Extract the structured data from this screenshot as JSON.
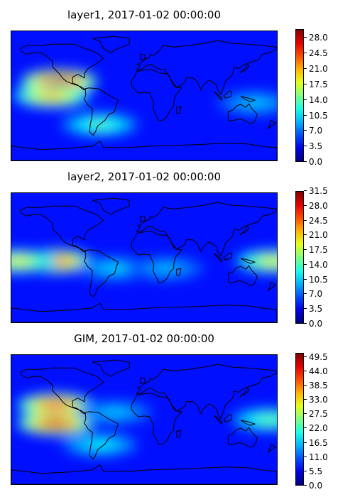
{
  "panels": [
    {
      "title": "layer1, 2017-01-02 00:00:00",
      "colorbar_ticks": [
        "0.0",
        "3.5",
        "7.0",
        "10.5",
        "14.0",
        "17.5",
        "21.0",
        "24.5",
        "28.0"
      ],
      "vmax": 30.0,
      "hotspots": [
        {
          "lon": -115,
          "lat": 20,
          "value": 29
        },
        {
          "lon": -125,
          "lat": 0,
          "value": 22
        },
        {
          "lon": -60,
          "lat": -40,
          "value": 14
        },
        {
          "lon": 150,
          "lat": -10,
          "value": 10
        }
      ]
    },
    {
      "title": "layer2, 2017-01-02 00:00:00",
      "colorbar_ticks": [
        "0.0",
        "3.5",
        "7.0",
        "10.5",
        "14.0",
        "17.5",
        "21.0",
        "24.5",
        "28.0",
        "31.5"
      ],
      "vmax": 31.5,
      "hotspots": [
        {
          "lon": -120,
          "lat": -5,
          "value": 27
        },
        {
          "lon": -170,
          "lat": -5,
          "value": 20
        },
        {
          "lon": 175,
          "lat": -5,
          "value": 20
        },
        {
          "lon": -40,
          "lat": -15,
          "value": 11
        },
        {
          "lon": 30,
          "lat": -15,
          "value": 10
        }
      ]
    },
    {
      "title": "GIM, 2017-01-02 00:00:00",
      "colorbar_ticks": [
        "0.0",
        "5.5",
        "11.0",
        "16.5",
        "22.0",
        "27.5",
        "33.0",
        "38.5",
        "44.0",
        "49.5"
      ],
      "vmax": 51.0,
      "hotspots": [
        {
          "lon": -120,
          "lat": 20,
          "value": 45
        },
        {
          "lon": -120,
          "lat": -5,
          "value": 47
        },
        {
          "lon": 170,
          "lat": 0,
          "value": 25
        },
        {
          "lon": -60,
          "lat": -35,
          "value": 20
        },
        {
          "lon": -40,
          "lat": 10,
          "value": 17
        }
      ]
    }
  ],
  "colormap": "jet",
  "map": {
    "lon_range": [
      -180,
      180
    ],
    "lat_range": [
      -90,
      90
    ],
    "coastlines": true
  }
}
